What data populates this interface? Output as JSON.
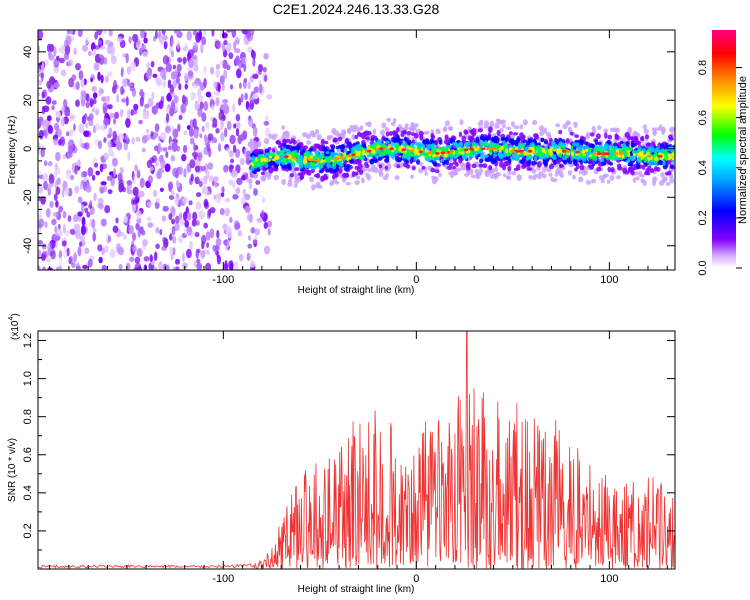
{
  "title": "C2E1.2024.246.13.33.G28",
  "chart_data": [
    {
      "type": "heatmap",
      "xlabel": "Height of straight line (km)",
      "ylabel": "Frequency (Hz)",
      "xlim": [
        -196,
        134
      ],
      "ylim": [
        -50,
        49
      ],
      "x_ticks": [
        -100,
        0,
        100
      ],
      "x_tick_labels": [
        "-100",
        "0",
        "100"
      ],
      "y_ticks": [
        -40,
        -20,
        0,
        20,
        40
      ],
      "y_tick_labels": [
        "-40",
        "-20",
        "0",
        "20",
        "40"
      ],
      "colorbar": {
        "label": "Normalized spectral amplitude",
        "range": [
          0,
          0.95
        ],
        "ticks": [
          0,
          0.2,
          0.4,
          0.6,
          0.8
        ],
        "tick_labels": [
          "0.0",
          "0.2",
          "0.4",
          "0.6",
          "0.8"
        ],
        "colors": [
          "#ffffff",
          "#8000ff",
          "#0000ff",
          "#00e0ff",
          "#00ff00",
          "#ffff00",
          "#ff8000",
          "#ff0000",
          "#ff0080"
        ]
      },
      "noise_region_x": [
        -196,
        -82
      ],
      "signal_track": {
        "x": [
          -86,
          -80,
          -70,
          -60,
          -50,
          -40,
          -30,
          -20,
          -10,
          0,
          10,
          20,
          30,
          40,
          50,
          60,
          70,
          80,
          90,
          100,
          110,
          120,
          134
        ],
        "frequency_hz": [
          -6,
          -5,
          -3,
          -4,
          -5,
          -4,
          -2,
          0,
          0,
          -1,
          -2,
          -1,
          0,
          0,
          -1,
          -1,
          -1,
          -1,
          -2,
          -2,
          -2,
          -3,
          -3
        ]
      }
    },
    {
      "type": "line",
      "xlabel": "Height of straight line (km)",
      "ylabel": "SNR (10 * v/v)",
      "y_scale_label": "(x10",
      "y_scale_exp": "4",
      "xlim": [
        -196,
        134
      ],
      "ylim": [
        0,
        1.25
      ],
      "x_ticks": [
        -100,
        0,
        100
      ],
      "x_tick_labels": [
        "-100",
        "0",
        "100"
      ],
      "y_ticks": [
        0.2,
        0.4,
        0.6,
        0.8,
        1.0,
        1.2
      ],
      "y_tick_labels": [
        "0.2",
        "0.4",
        "0.6",
        "0.8",
        "1.0",
        "1.2"
      ],
      "line_color": "#ee3333",
      "envelope": {
        "x": [
          -196,
          -100,
          -84,
          -78,
          -70,
          -60,
          -50,
          -40,
          -30,
          -20,
          -10,
          0,
          10,
          20,
          26,
          30,
          40,
          50,
          60,
          70,
          80,
          90,
          100,
          110,
          120,
          134
        ],
        "snr_peak": [
          0.02,
          0.02,
          0.03,
          0.08,
          0.3,
          0.62,
          0.7,
          0.8,
          0.9,
          0.92,
          0.92,
          0.92,
          0.95,
          1.1,
          1.25,
          1.12,
          1.1,
          1.0,
          0.95,
          0.85,
          0.78,
          0.7,
          0.6,
          0.55,
          0.6,
          0.5
        ]
      },
      "peak": {
        "x": 26,
        "snr": 1.25
      }
    }
  ]
}
